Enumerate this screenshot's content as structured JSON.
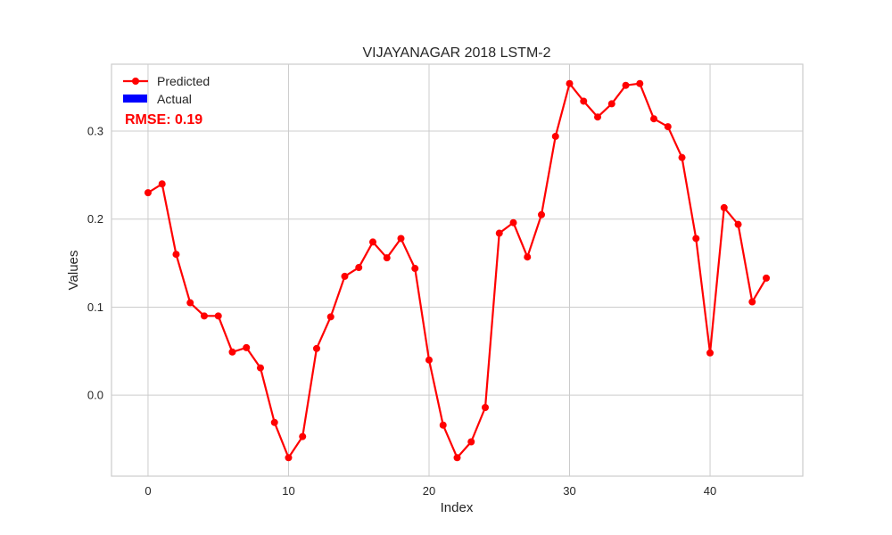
{
  "chart_data": {
    "type": "line",
    "title": "VIJAYANAGAR 2018 LSTM-2",
    "xlabel": "Index",
    "ylabel": "Values",
    "xlim": [
      -2.6,
      46.6
    ],
    "ylim": [
      -0.092,
      0.376
    ],
    "xticks": [
      0,
      10,
      20,
      30,
      40
    ],
    "xtick_labels": [
      "0",
      "10",
      "20",
      "30",
      "40"
    ],
    "yticks": [
      0.0,
      0.1,
      0.2,
      0.3
    ],
    "ytick_labels": [
      "0.0",
      "0.1",
      "0.2",
      "0.3"
    ],
    "grid": true,
    "legend_position": "top-left",
    "annotation": "RMSE: 0.19",
    "series": [
      {
        "name": "Predicted",
        "color": "#ff0000",
        "marker": "circle",
        "x": [
          0,
          1,
          2,
          3,
          4,
          5,
          6,
          7,
          8,
          9,
          10,
          11,
          12,
          13,
          14,
          15,
          16,
          17,
          18,
          19,
          20,
          21,
          22,
          23,
          24,
          25,
          26,
          27,
          28,
          29,
          30,
          31,
          32,
          33,
          34,
          35,
          36,
          37,
          38,
          39,
          40,
          41,
          42,
          43,
          44
        ],
        "values": [
          0.23,
          0.24,
          0.16,
          0.105,
          0.09,
          0.09,
          0.049,
          0.054,
          0.031,
          -0.031,
          -0.071,
          -0.047,
          0.053,
          0.089,
          0.135,
          0.145,
          0.174,
          0.156,
          0.178,
          0.144,
          0.04,
          -0.034,
          -0.071,
          -0.053,
          -0.014,
          0.184,
          0.196,
          0.157,
          0.205,
          0.294,
          0.354,
          0.334,
          0.316,
          0.331,
          0.352,
          0.354,
          0.314,
          0.305,
          0.27,
          0.178,
          0.048,
          0.213,
          0.194,
          0.106,
          0.133
        ]
      },
      {
        "name": "Actual",
        "color": "#0000ff",
        "marker": "bar",
        "x": [],
        "values": []
      }
    ]
  }
}
